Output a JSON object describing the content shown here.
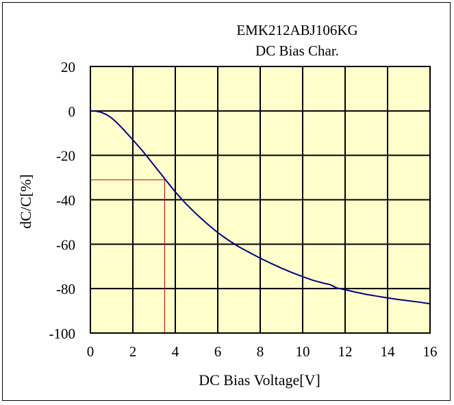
{
  "chart_data": {
    "type": "line",
    "title": "EMK212ABJ106KG",
    "subtitle": "DC Bias Char.",
    "xlabel": "DC Bias Voltage[V]",
    "ylabel": "dC/C[%]",
    "xlim": [
      0,
      16
    ],
    "ylim": [
      -100,
      20
    ],
    "x_ticks": [
      "0",
      "2",
      "4",
      "6",
      "8",
      "10",
      "12",
      "14",
      "16"
    ],
    "y_ticks": [
      "20",
      "0",
      "-20",
      "-40",
      "-60",
      "-80",
      "-100"
    ],
    "grid": true,
    "plot_background": "#ffffcc",
    "curve_color": "#00007f",
    "marker_color": "#cc0000",
    "marker": {
      "x": 3.5,
      "y": -31
    },
    "series": [
      {
        "x": [
          0,
          0.25,
          0.5,
          0.75,
          1.0,
          1.25,
          1.5,
          1.75,
          2.0,
          2.5,
          3.0,
          3.5,
          4.0,
          4.5,
          5.0,
          5.5,
          6.0,
          6.5,
          7.0,
          7.5,
          8.0,
          8.5,
          9.0,
          9.5,
          10.0,
          10.5,
          11.0,
          11.3,
          11.6,
          12.0,
          12.5,
          13.0,
          13.5,
          14.0,
          14.5,
          15.0,
          15.5,
          16.0
        ],
        "y": [
          0,
          -0.1,
          -0.6,
          -1.6,
          -3.2,
          -5.3,
          -7.8,
          -10.4,
          -13,
          -18.5,
          -24.5,
          -30.5,
          -36.5,
          -41.8,
          -46.5,
          -50.8,
          -54.8,
          -58.2,
          -61.2,
          -63.8,
          -66.3,
          -68.6,
          -70.8,
          -72.8,
          -74.6,
          -76.3,
          -77.6,
          -78.2,
          -79.7,
          -80.5,
          -81.6,
          -82.6,
          -83.4,
          -84.2,
          -84.9,
          -85.5,
          -86.1,
          -86.8
        ]
      }
    ]
  }
}
